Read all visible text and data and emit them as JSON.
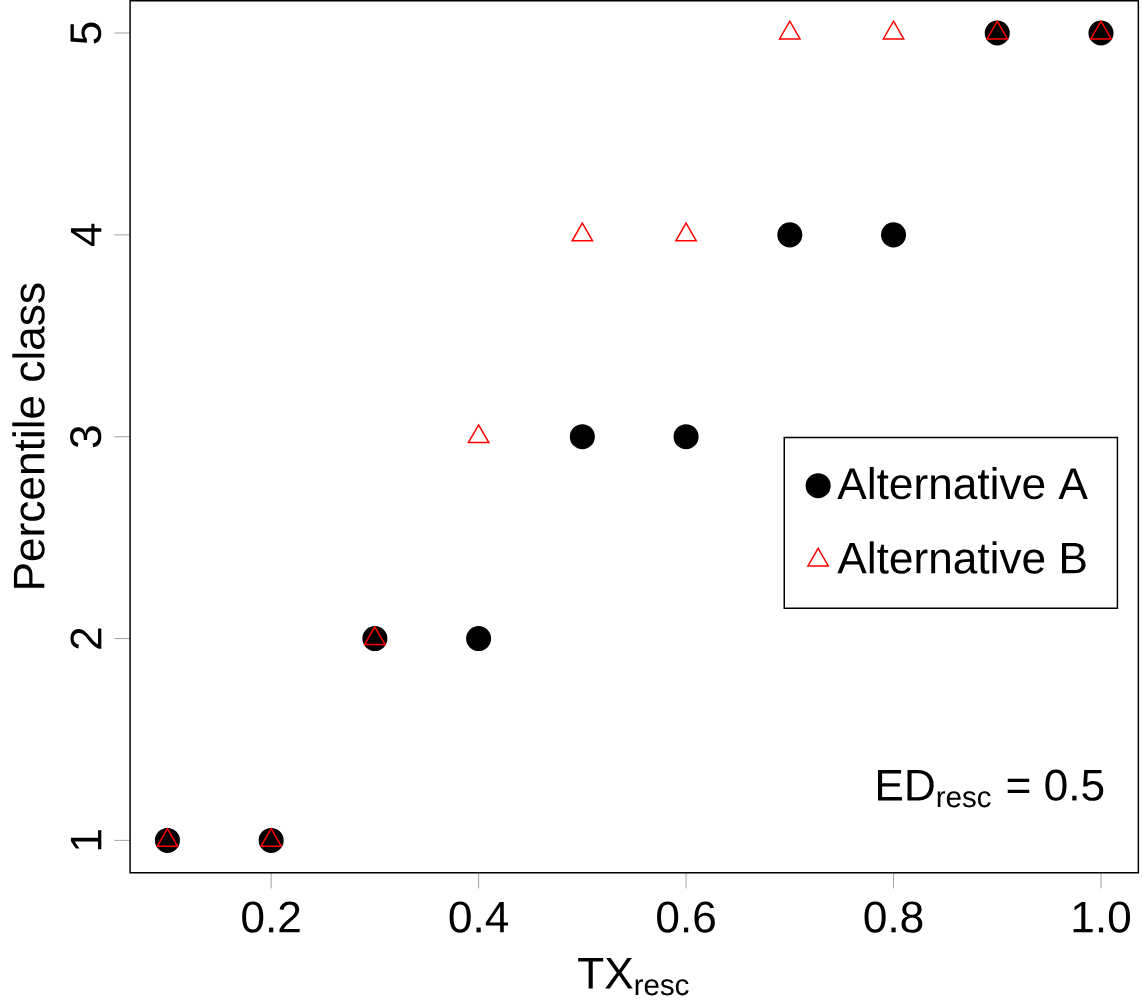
{
  "chart_data": {
    "type": "scatter",
    "xlabel": "TX$_{resc}$",
    "ylabel": "Percentile class",
    "x": [
      0.1,
      0.2,
      0.3,
      0.4,
      0.5,
      0.6,
      0.7,
      0.8,
      0.9,
      1.0
    ],
    "series": [
      {
        "name": "Alternative A",
        "color": "#000000",
        "marker": "circle",
        "values": [
          1,
          1,
          2,
          2,
          3,
          3,
          4,
          4,
          5,
          5
        ]
      },
      {
        "name": "Alternative B",
        "color": "#ff0000",
        "marker": "triangle",
        "values": [
          1,
          1,
          2,
          3,
          4,
          4,
          5,
          5,
          5,
          5
        ]
      }
    ],
    "xlim": [
      0.064,
      1.036
    ],
    "ylim": [
      0.84,
      5.16
    ],
    "xticks": [
      0.2,
      0.4,
      0.6,
      0.8,
      {
        "value": 1.0,
        "label": "1.0"
      }
    ],
    "yticks": [
      1,
      2,
      3,
      4,
      5
    ],
    "grid": false,
    "legend": "right",
    "annotations": [
      "ED$_{resc}$ = 0.5"
    ]
  }
}
